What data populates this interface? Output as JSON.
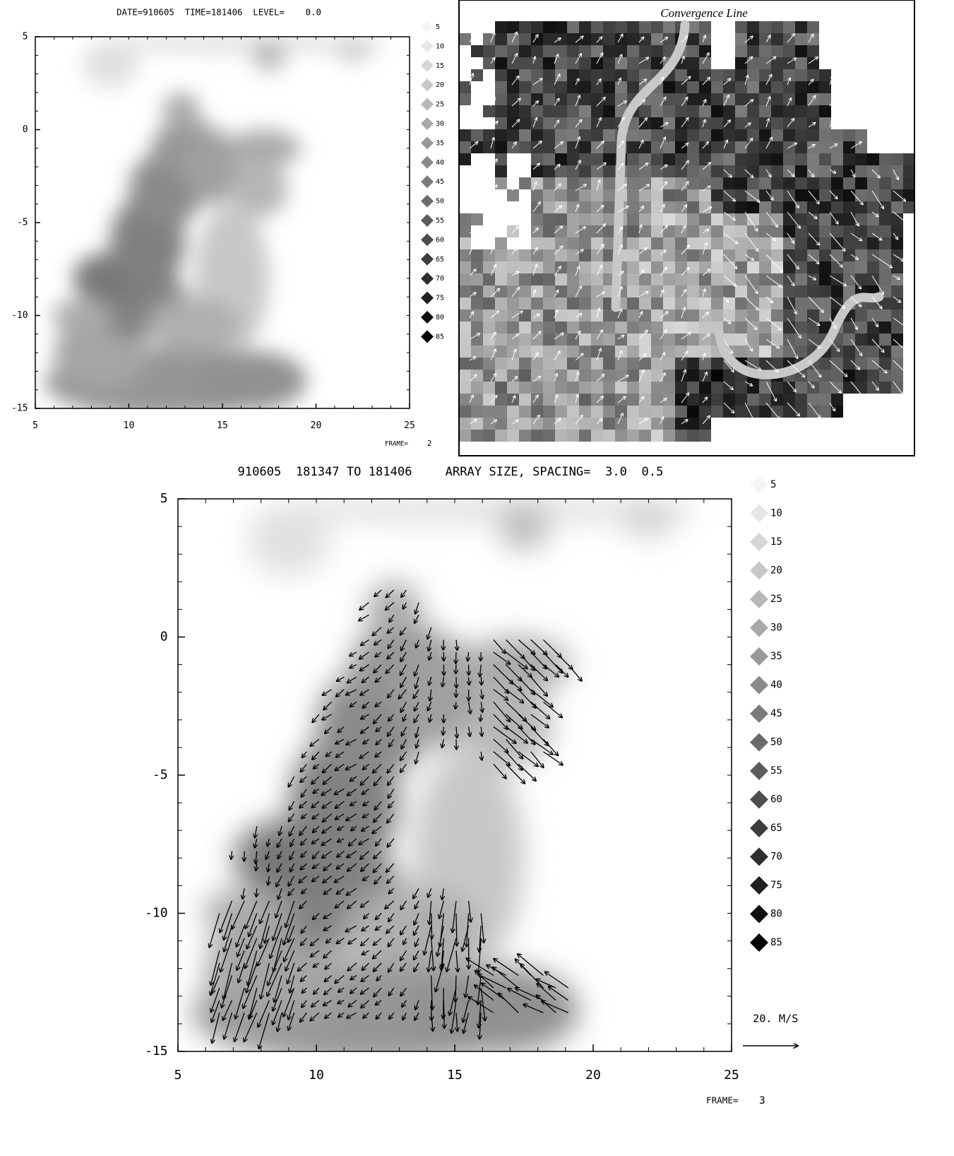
{
  "chart_data": [
    {
      "type": "heatmap",
      "title": "DATE=910605  TIME=181406  LEVEL=    0.0",
      "xlim": [
        5,
        25
      ],
      "ylim": [
        -15,
        5
      ],
      "xticks": [
        5,
        10,
        15,
        20,
        25
      ],
      "yticks": [
        -15,
        -10,
        -5,
        0,
        5
      ],
      "legend_levels": [
        5,
        10,
        15,
        20,
        25,
        30,
        35,
        40,
        45,
        50,
        55,
        60,
        65,
        70,
        75,
        80,
        85
      ],
      "frame_label": "FRAME=",
      "frame": 2
    },
    {
      "type": "map",
      "annotation": "Convergence Line"
    },
    {
      "type": "heatmap",
      "title": "910605  181347 TO 181406",
      "subtitle": "ARRAY SIZE, SPACING=  3.0  0.5",
      "xlim": [
        5,
        25
      ],
      "ylim": [
        -15,
        5
      ],
      "xticks": [
        5,
        10,
        15,
        20,
        25
      ],
      "yticks": [
        -15,
        -10,
        -5,
        0,
        5
      ],
      "legend_levels": [
        5,
        10,
        15,
        20,
        25,
        30,
        35,
        40,
        45,
        50,
        55,
        60,
        65,
        70,
        75,
        80,
        85
      ],
      "vector_scale_label": "20. M/S",
      "frame_label": "FRAME=",
      "frame": 3
    }
  ]
}
